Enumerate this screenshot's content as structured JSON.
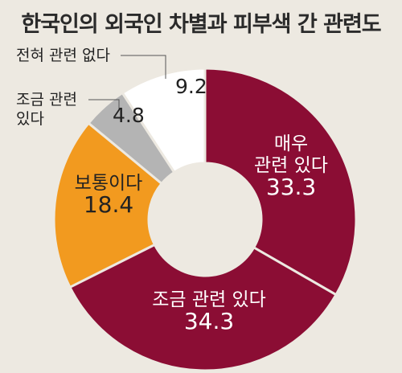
{
  "title": "한국인의 외국인 차별과 피부색 간 관련도",
  "chart_data": {
    "type": "pie",
    "donut": true,
    "title": "한국인의 외국인 차별과 피부색 간 관련도",
    "slices": [
      {
        "key": "very",
        "label_lines": [
          "매우",
          "관련 있다"
        ],
        "value": 33.3,
        "value_label": "33.3",
        "color": "#8b0d34",
        "text_color": "#ffffff"
      },
      {
        "key": "somewhat",
        "label_lines": [
          "조금 관련 있다"
        ],
        "value": 34.3,
        "value_label": "34.3",
        "color": "#8b0d34",
        "text_color": "#ffffff"
      },
      {
        "key": "neutral",
        "label_lines": [
          "보통이다"
        ],
        "value": 18.4,
        "value_label": "18.4",
        "color": "#f29a1f",
        "text_color": "#222222"
      },
      {
        "key": "little",
        "label_lines": [
          "조금 관련",
          "있다"
        ],
        "value": 4.8,
        "value_label": "4.8",
        "color": "#b4b4b4",
        "text_color": "#222222"
      },
      {
        "key": "none",
        "label_lines": [
          "전혀 관련 없다"
        ],
        "value": 9.2,
        "value_label": "9.2",
        "color": "#ffffff",
        "text_color": "#222222"
      }
    ]
  }
}
